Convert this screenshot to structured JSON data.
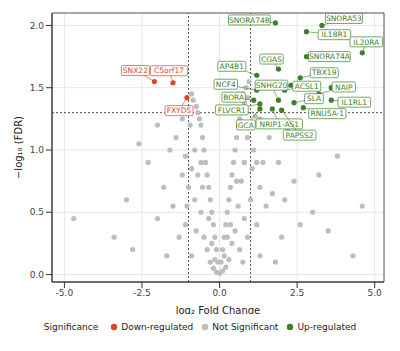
{
  "chart_data": {
    "type": "scatter",
    "xlabel": "log₂ Fold Change",
    "ylabel": "−log₁₀ (FDR)",
    "xlim": [
      -5.4,
      5.3
    ],
    "ylim": [
      -0.06,
      2.1
    ],
    "xticks": [
      {
        "value": -5,
        "label": "-5.0"
      },
      {
        "value": -2.5,
        "label": "-2.5"
      },
      {
        "value": 0,
        "label": "0.0"
      },
      {
        "value": 2.5,
        "label": "2.5"
      },
      {
        "value": 5,
        "label": "5.0"
      }
    ],
    "yticks": [
      {
        "value": 0,
        "label": "0.0"
      },
      {
        "value": 0.5,
        "label": "0.5"
      },
      {
        "value": 1,
        "label": "1.0"
      },
      {
        "value": 1.5,
        "label": "1.5"
      },
      {
        "value": 2,
        "label": "2.0"
      }
    ],
    "grid": true,
    "legend": "bottom",
    "legend_title": "Significance",
    "thresholds": {
      "x": [
        -1,
        1
      ],
      "y": 1.3
    },
    "series": [
      {
        "name": "Down-regulated",
        "color": "#d9472b",
        "x": [
          -2.1,
          -1.5,
          -1.05
        ],
        "values": [
          1.55,
          1.54,
          1.42
        ],
        "point_labels": [
          "SNX22",
          "C5orf17",
          "FXYD5"
        ]
      },
      {
        "name": "Not Significant",
        "color": "#bdbdbd",
        "x": [
          -0.75,
          -0.7,
          -0.65,
          -0.6,
          -0.55,
          -0.5,
          -0.45,
          -0.4,
          -0.35,
          -0.3,
          -0.25,
          -0.2,
          -0.15,
          -0.1,
          -0.05,
          0.05,
          0.1,
          0.15,
          0.2,
          0.25,
          0.3,
          0.35,
          0.4,
          0.45,
          0.5,
          0.55,
          0.6,
          0.65,
          0.7,
          0.8,
          0.9,
          -0.85,
          -0.9,
          0.85,
          0.75,
          0.95,
          -0.6,
          -0.8,
          -0.7,
          -0.9,
          -1.1,
          -1.2,
          -1.0,
          -0.8,
          -0.6,
          -0.5,
          -0.4,
          -0.3,
          -0.2,
          -0.1,
          0,
          0.1,
          0.2,
          0.3,
          0.4,
          0.5,
          0.6,
          0.7,
          0.8,
          0.9,
          1.0,
          1.1,
          1.2,
          1.3,
          1.0,
          0.8,
          0.65,
          0.9,
          1.2,
          1.5,
          1.7,
          1.4,
          1.6,
          1.9,
          2.1,
          2.4,
          2.0,
          2.6,
          3.0,
          3.5,
          3.2,
          3.8,
          4.6,
          4.3,
          1.8,
          1.3,
          -1.3,
          -1.5,
          -1.8,
          -2.0,
          -2.3,
          -2.6,
          -3.0,
          -3.4,
          -4.7,
          -2.8,
          -1.7,
          -1.1,
          -1.4,
          -1.6,
          -2.0,
          -1.2,
          -0.95,
          1.3,
          1.15,
          2.2,
          2.8,
          -0.75,
          0.75,
          -0.9,
          1.05,
          -1.05,
          0.55,
          -0.55,
          0.35,
          -0.35,
          0.15,
          -0.15,
          0.25,
          -0.25
        ],
        "values": [
          1.35,
          1.3,
          1.25,
          1.2,
          1.1,
          1.0,
          0.9,
          0.8,
          0.7,
          0.6,
          0.5,
          0.4,
          0.3,
          0.2,
          0.1,
          0.1,
          0.2,
          0.3,
          0.4,
          0.5,
          0.6,
          0.7,
          0.8,
          0.9,
          1.0,
          1.1,
          1.2,
          1.25,
          1.3,
          1.38,
          1.42,
          1.4,
          1.45,
          1.5,
          1.45,
          1.55,
          0.9,
          1.0,
          0.8,
          0.85,
          0.95,
          0.8,
          0.7,
          0.6,
          0.5,
          0.3,
          0.2,
          0.1,
          0.05,
          0.02,
          0.01,
          0.03,
          0.06,
          0.12,
          0.25,
          0.35,
          0.55,
          0.75,
          0.9,
          1.1,
          1.2,
          1.0,
          0.9,
          0.7,
          0.6,
          0.45,
          0.2,
          0.3,
          0.4,
          0.55,
          0.65,
          0.9,
          1.1,
          0.9,
          0.6,
          0.75,
          0.3,
          0.4,
          0.5,
          0.35,
          0.8,
          0.95,
          0.55,
          0.15,
          0.1,
          0.15,
          0.3,
          0.55,
          0.7,
          0.45,
          0.9,
          1.05,
          0.6,
          0.3,
          0.45,
          0.2,
          0.15,
          0.4,
          1.1,
          1.0,
          1.2,
          1.25,
          1.2,
          1.25,
          1.27,
          1.15,
          1.1,
          0.35,
          0.1,
          0.15,
          0.85,
          0.55,
          0.75,
          0.7,
          0.4,
          0.45,
          0.15,
          0.12,
          0.3,
          0.25
        ]
      },
      {
        "name": "Up-regulated",
        "color": "#3d7f2a",
        "x": [
          1.8,
          2.8,
          3.3,
          4.6,
          2.8,
          1.9,
          2.6,
          1.2,
          1.2,
          2.1,
          3.2,
          1.1,
          3.6,
          1.3,
          1.9,
          2.4,
          2.7,
          1.3,
          1.7,
          2.0,
          3.6,
          4.2,
          2.3
        ],
        "values": [
          2.02,
          1.95,
          2.0,
          1.78,
          1.75,
          1.65,
          1.58,
          1.6,
          1.48,
          1.48,
          1.45,
          1.4,
          1.4,
          1.37,
          1.4,
          1.38,
          1.34,
          1.33,
          1.33,
          1.32,
          1.5,
          1.52,
          1.52
        ],
        "point_labels": [
          "SNORA74B",
          "IL18R1",
          "SNORA53",
          "IL20RA",
          "SNORA74A",
          "CGAS",
          "TBX19",
          "AP4B1",
          "NCF4",
          "ACSL1",
          "NAIP",
          "BORA",
          "IL1RL1",
          "FLVCR1",
          "SNHG20",
          "SLA",
          "RNU5A-1",
          "GCA",
          "NRIP1-AS1",
          "PAPSS2",
          null,
          null,
          null
        ]
      }
    ]
  }
}
